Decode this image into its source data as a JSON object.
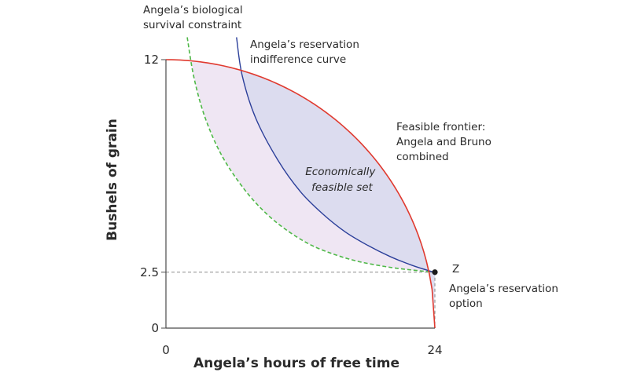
{
  "chart_data": {
    "type": "line",
    "xlabel": "Angela’s hours of free time",
    "ylabel": "Bushels of grain",
    "xlim": [
      0,
      24
    ],
    "ylim": [
      0,
      12
    ],
    "x_ticks": [
      "0",
      "24"
    ],
    "y_ticks": [
      "0",
      "2.5",
      "12"
    ],
    "grid": false,
    "series": [
      {
        "name": "Feasible frontier: Angela and Bruno combined",
        "style": "solid",
        "color": "#e03a2f",
        "x": [
          0,
          4,
          8,
          12,
          16,
          20,
          22,
          23,
          24
        ],
        "y": [
          12,
          11.73,
          10.9,
          9.5,
          7.53,
          4.79,
          3.04,
          2.03,
          0
        ]
      },
      {
        "name": "Angela’s reservation indifference curve",
        "style": "solid",
        "color": "#2b3f9a",
        "x": [
          6.3,
          6.8,
          8,
          10,
          12,
          14,
          16,
          18,
          20,
          22,
          23.9
        ],
        "y": [
          13.0,
          11.3,
          9.4,
          7.5,
          6.1,
          5.1,
          4.3,
          3.7,
          3.2,
          2.8,
          2.5
        ]
      },
      {
        "name": "Angela’s biological survival constraint",
        "style": "dashed",
        "color": "#4fb848",
        "x": [
          1.9,
          2.5,
          3.5,
          5,
          7,
          9,
          11,
          13,
          15,
          17,
          19,
          21,
          23.9
        ],
        "y": [
          13.0,
          11.2,
          9.4,
          7.7,
          6.2,
          5.1,
          4.3,
          3.7,
          3.3,
          3.0,
          2.8,
          2.65,
          2.5
        ]
      }
    ],
    "point": {
      "label": "Z",
      "x": 24,
      "y": 2.5,
      "note": "Angela’s reservation option"
    },
    "region": {
      "label": [
        "Economically",
        "feasible set"
      ],
      "color": "#dcdcef"
    },
    "survival_region_color": "#efe6f3",
    "annotations": {
      "survival": [
        "Angela’s biological",
        "survival constraint"
      ],
      "reservation_curve": [
        "Angela’s reservation",
        "indifference curve"
      ],
      "frontier": [
        "Feasible frontier:",
        "Angela and Bruno",
        "combined"
      ],
      "reservation_option": [
        "Angela’s reservation",
        "option"
      ]
    },
    "colors": {
      "axis": "#4a4a4a",
      "guide": "#8a8a8a",
      "point": "#1a1a1a"
    }
  }
}
